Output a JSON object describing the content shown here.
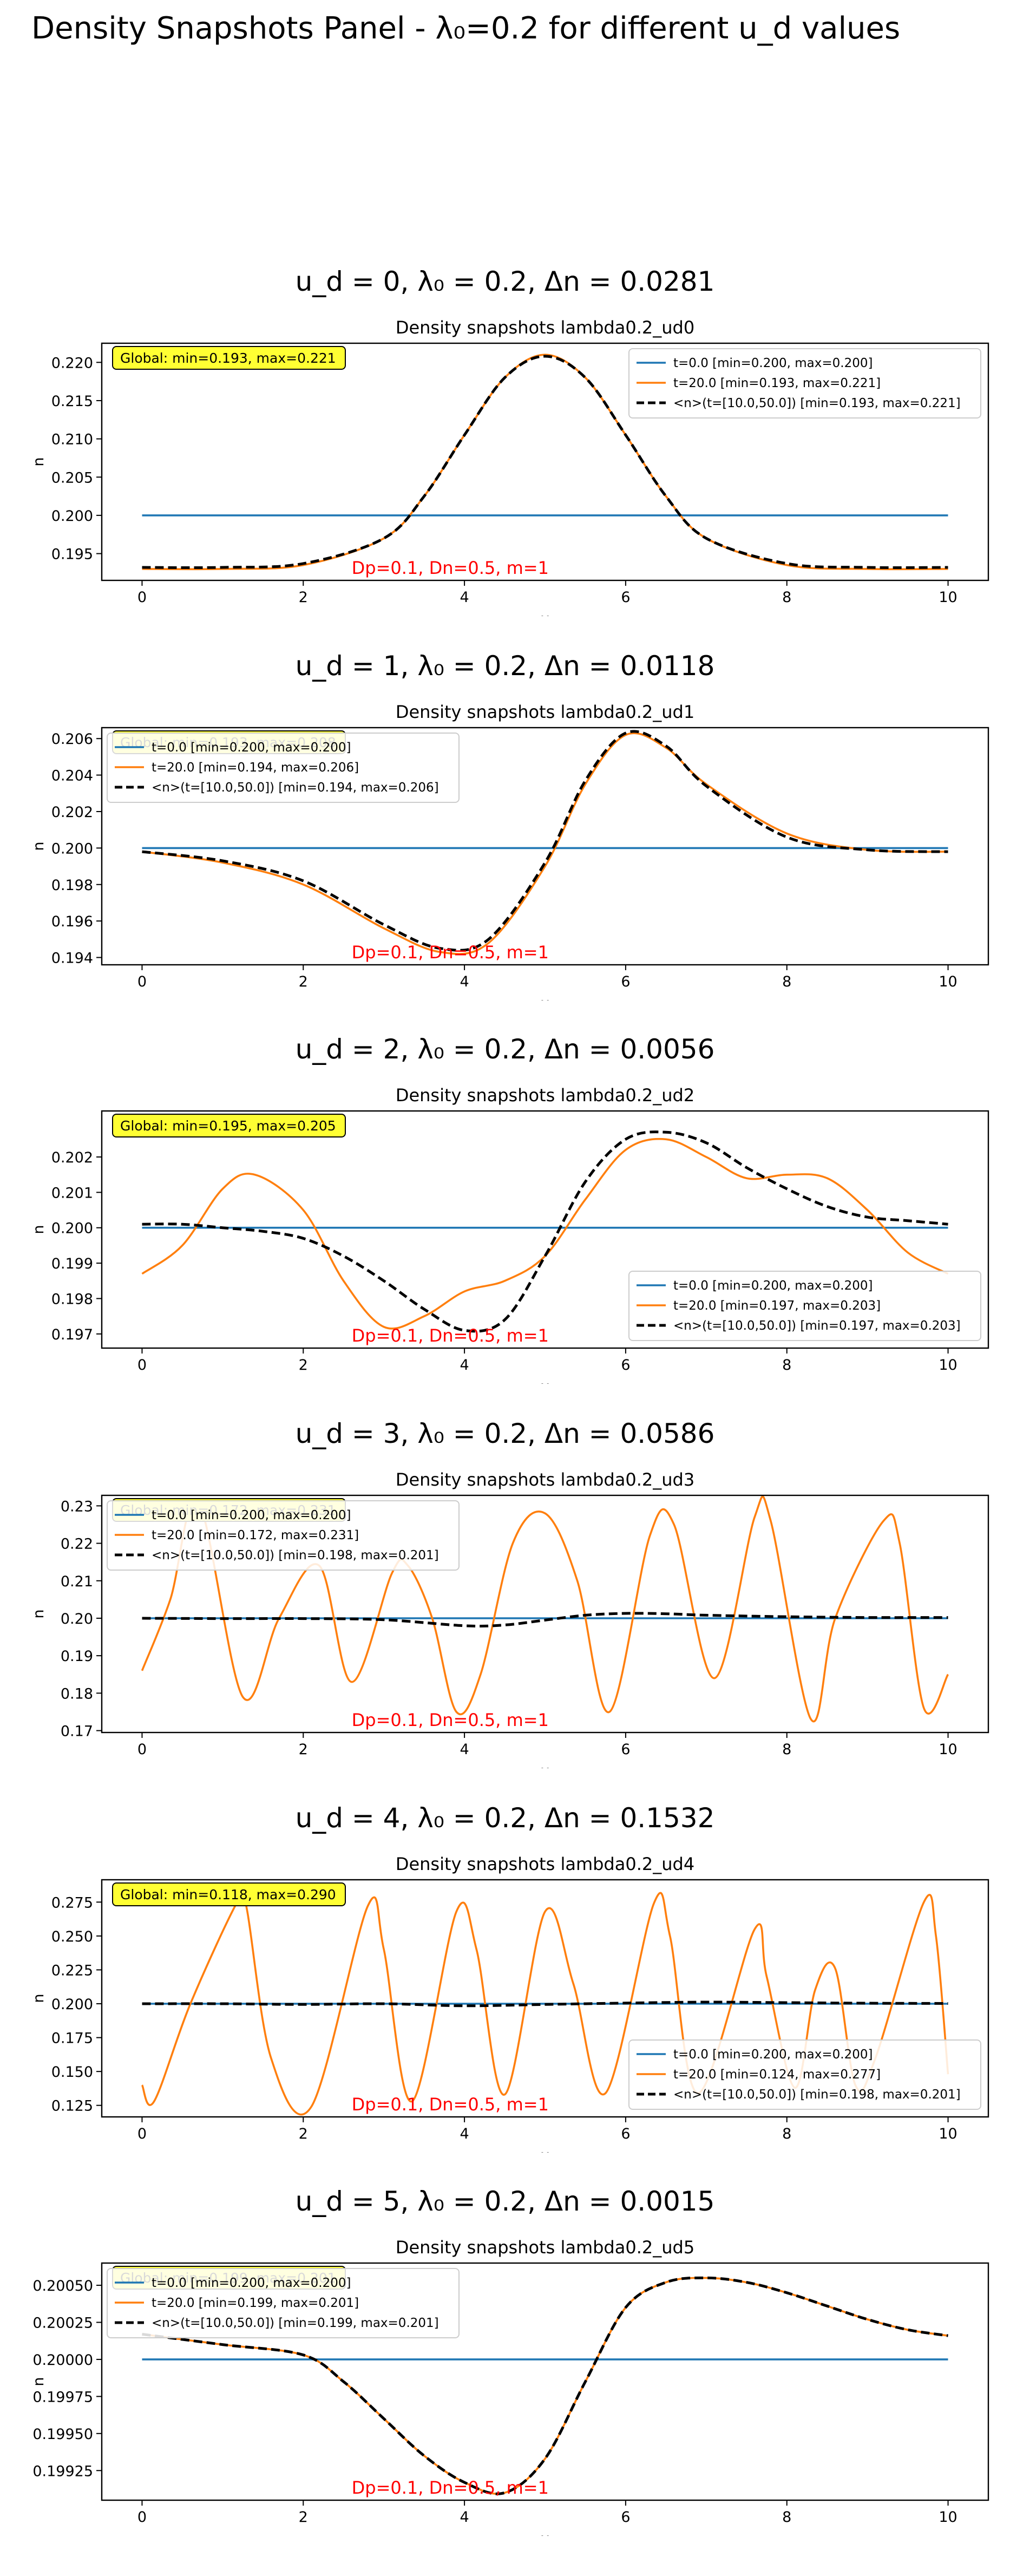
{
  "page_title": "Density Snapshots Panel - λ₀=0.2 for different u_d values",
  "colors": {
    "t0": "#1f77b4",
    "t20": "#ff7f0e",
    "avg": "#000000",
    "global_box": "#ffff33",
    "param_text": "#ff0000"
  },
  "chart_data": [
    {
      "type": "line",
      "heading": "u_d = 0, λ₀ = 0.2, Δn = 0.0281",
      "title": "Density snapshots  lambda0.2_ud0",
      "xlabel": "x",
      "ylabel": "n",
      "xlim": [
        -0.5,
        10.5
      ],
      "ylim": [
        0.1915,
        0.2225
      ],
      "xticks": [
        0,
        2,
        4,
        6,
        8,
        10
      ],
      "yticks": [
        0.195,
        0.2,
        0.205,
        0.21,
        0.215,
        0.22
      ],
      "ytick_labels": [
        "0.195",
        "0.200",
        "0.205",
        "0.210",
        "0.215",
        "0.220"
      ],
      "global_text": "Global: min=0.193, max=0.221",
      "param_text": "Dp=0.1, Dn=0.5, m=1",
      "legend_position": "upper-right",
      "legend_labels": [
        "t=0.0 [min=0.200, max=0.200]",
        "t=20.0 [min=0.193, max=0.221]",
        "<n>(t=[10.0,50.0]) [min=0.193, max=0.221]"
      ],
      "series": [
        {
          "name": "t=0.0",
          "x": [
            0,
            10
          ],
          "y": [
            0.2,
            0.2
          ]
        },
        {
          "name": "t=20.0",
          "x": [
            0,
            1,
            2,
            3,
            3.5,
            4,
            4.5,
            5,
            5.5,
            6,
            6.5,
            7,
            8,
            9,
            10
          ],
          "y": [
            0.193,
            0.193,
            0.1935,
            0.197,
            0.2025,
            0.2105,
            0.218,
            0.221,
            0.218,
            0.2105,
            0.2025,
            0.197,
            0.1935,
            0.193,
            0.193
          ]
        },
        {
          "name": "<n>(t=[10.0,50.0])",
          "x": [
            0,
            1,
            2,
            3,
            3.5,
            4,
            4.5,
            5,
            5.5,
            6,
            6.5,
            7,
            8,
            9,
            10
          ],
          "y": [
            0.1932,
            0.1932,
            0.1937,
            0.197,
            0.2025,
            0.2105,
            0.218,
            0.2208,
            0.218,
            0.2105,
            0.2025,
            0.197,
            0.1937,
            0.1932,
            0.1932
          ]
        }
      ]
    },
    {
      "type": "line",
      "heading": "u_d = 1, λ₀ = 0.2, Δn = 0.0118",
      "title": "Density snapshots  lambda0.2_ud1",
      "xlabel": "x",
      "ylabel": "n",
      "xlim": [
        -0.5,
        10.5
      ],
      "ylim": [
        0.1936,
        0.2066
      ],
      "xticks": [
        0,
        2,
        4,
        6,
        8,
        10
      ],
      "yticks": [
        0.194,
        0.196,
        0.198,
        0.2,
        0.202,
        0.204,
        0.206
      ],
      "ytick_labels": [
        "0.194",
        "0.196",
        "0.198",
        "0.200",
        "0.202",
        "0.204",
        "0.206"
      ],
      "global_text": "Global: min=0.193, max=0.208",
      "param_text": "Dp=0.1, Dn=0.5, m=1",
      "legend_position": "upper-left",
      "legend_labels": [
        "t=0.0 [min=0.200, max=0.200]",
        "t=20.0 [min=0.194, max=0.206]",
        "<n>(t=[10.0,50.0]) [min=0.194, max=0.206]"
      ],
      "series": [
        {
          "name": "t=0.0",
          "x": [
            0,
            10
          ],
          "y": [
            0.2,
            0.2
          ]
        },
        {
          "name": "t=20.0",
          "x": [
            0,
            1,
            2,
            3,
            3.7,
            4.3,
            5,
            5.5,
            6,
            6.5,
            7,
            8,
            9,
            10
          ],
          "y": [
            0.1998,
            0.1992,
            0.198,
            0.1956,
            0.1943,
            0.1948,
            0.199,
            0.2035,
            0.2062,
            0.2055,
            0.2035,
            0.2008,
            0.1999,
            0.1998
          ]
        },
        {
          "name": "<n>(t=[10.0,50.0])",
          "x": [
            0,
            1,
            2,
            3,
            3.7,
            4.3,
            5,
            5.5,
            6,
            6.5,
            7,
            8,
            9,
            10
          ],
          "y": [
            0.1998,
            0.1993,
            0.1982,
            0.1958,
            0.1945,
            0.195,
            0.1992,
            0.2037,
            0.2063,
            0.2056,
            0.2034,
            0.2006,
            0.1999,
            0.1998
          ]
        }
      ]
    },
    {
      "type": "line",
      "heading": "u_d = 2, λ₀ = 0.2, Δn = 0.0056",
      "title": "Density snapshots  lambda0.2_ud2",
      "xlabel": "x",
      "ylabel": "n",
      "xlim": [
        -0.5,
        10.5
      ],
      "ylim": [
        0.1966,
        0.2033
      ],
      "xticks": [
        0,
        2,
        4,
        6,
        8,
        10
      ],
      "yticks": [
        0.197,
        0.198,
        0.199,
        0.2,
        0.201,
        0.202
      ],
      "ytick_labels": [
        "0.197",
        "0.198",
        "0.199",
        "0.200",
        "0.201",
        "0.202"
      ],
      "global_text": "Global: min=0.195, max=0.205",
      "param_text": "Dp=0.1, Dn=0.5, m=1",
      "legend_position": "lower-right",
      "legend_labels": [
        "t=0.0 [min=0.200, max=0.200]",
        "t=20.0 [min=0.197, max=0.203]",
        "<n>(t=[10.0,50.0]) [min=0.197, max=0.203]"
      ],
      "series": [
        {
          "name": "t=0.0",
          "x": [
            0,
            10
          ],
          "y": [
            0.2,
            0.2
          ]
        },
        {
          "name": "t=20.0",
          "x": [
            0,
            0.5,
            1,
            1.4,
            2,
            2.5,
            3,
            3.5,
            4,
            4.5,
            5,
            5.5,
            6,
            6.5,
            7,
            7.5,
            8,
            8.5,
            9,
            9.5,
            10
          ],
          "y": [
            0.1987,
            0.1995,
            0.2011,
            0.2015,
            0.2005,
            0.1985,
            0.1972,
            0.1975,
            0.1982,
            0.1985,
            0.1992,
            0.2008,
            0.2022,
            0.2025,
            0.202,
            0.2014,
            0.2015,
            0.2014,
            0.2005,
            0.1993,
            0.1987
          ]
        },
        {
          "name": "<n>(t=[10.0,50.0])",
          "x": [
            0,
            0.5,
            1,
            1.5,
            2,
            2.5,
            3,
            3.5,
            4,
            4.5,
            5,
            5.5,
            6,
            6.5,
            7,
            7.5,
            8,
            8.5,
            9,
            9.5,
            10
          ],
          "y": [
            0.2001,
            0.2001,
            0.2,
            0.1999,
            0.1997,
            0.1992,
            0.1985,
            0.1977,
            0.1971,
            0.1974,
            0.1992,
            0.2013,
            0.2025,
            0.2027,
            0.2024,
            0.2017,
            0.2011,
            0.2006,
            0.2003,
            0.2002,
            0.2001
          ]
        }
      ]
    },
    {
      "type": "line",
      "heading": "u_d = 3, λ₀ = 0.2, Δn = 0.0586",
      "title": "Density snapshots  lambda0.2_ud3",
      "xlabel": "x",
      "ylabel": "n",
      "xlim": [
        -0.5,
        10.5
      ],
      "ylim": [
        0.1695,
        0.2328
      ],
      "xticks": [
        0,
        2,
        4,
        6,
        8,
        10
      ],
      "yticks": [
        0.17,
        0.18,
        0.19,
        0.2,
        0.21,
        0.22,
        0.23
      ],
      "ytick_labels": [
        "0.17",
        "0.18",
        "0.19",
        "0.20",
        "0.21",
        "0.22",
        "0.23"
      ],
      "global_text": "Global: min=0.172, max=0.231",
      "param_text": "Dp=0.1, Dn=0.5, m=1",
      "legend_position": "upper-left",
      "legend_labels": [
        "t=0.0 [min=0.200, max=0.200]",
        "t=20.0 [min=0.172, max=0.231]",
        "<n>(t=[10.0,50.0]) [min=0.198, max=0.201]"
      ],
      "series": [
        {
          "name": "t=0.0",
          "x": [
            0,
            10
          ],
          "y": [
            0.2,
            0.2
          ]
        },
        {
          "name": "t=20.0",
          "x": [
            0,
            0.35,
            0.7,
            1.25,
            1.7,
            2.2,
            2.6,
            3.1,
            3.3,
            3.6,
            3.9,
            4.2,
            4.6,
            5.0,
            5.4,
            5.8,
            6.3,
            6.6,
            7.1,
            7.6,
            7.8,
            8.3,
            8.6,
            9.2,
            9.4,
            9.7,
            10
          ],
          "y": [
            0.186,
            0.205,
            0.231,
            0.179,
            0.2,
            0.214,
            0.183,
            0.212,
            0.214,
            0.2,
            0.175,
            0.185,
            0.22,
            0.228,
            0.21,
            0.175,
            0.222,
            0.225,
            0.184,
            0.227,
            0.226,
            0.173,
            0.2,
            0.226,
            0.22,
            0.176,
            0.185
          ]
        },
        {
          "name": "<n>(t=[10.0,50.0])",
          "x": [
            0,
            1,
            2,
            3,
            4,
            4.5,
            5,
            5.5,
            6,
            6.5,
            7,
            8,
            9,
            10
          ],
          "y": [
            0.2,
            0.1999,
            0.1999,
            0.1996,
            0.198,
            0.1982,
            0.1995,
            0.2008,
            0.2013,
            0.2012,
            0.2008,
            0.2004,
            0.2002,
            0.2002
          ]
        }
      ]
    },
    {
      "type": "line",
      "heading": "u_d = 4, λ₀ = 0.2, Δn = 0.1532",
      "title": "Density snapshots  lambda0.2_ud4",
      "xlabel": "x",
      "ylabel": "n",
      "xlim": [
        -0.5,
        10.5
      ],
      "ylim": [
        0.1165,
        0.2915
      ],
      "xticks": [
        0,
        2,
        4,
        6,
        8,
        10
      ],
      "yticks": [
        0.125,
        0.15,
        0.175,
        0.2,
        0.225,
        0.25,
        0.275
      ],
      "ytick_labels": [
        "0.125",
        "0.150",
        "0.175",
        "0.200",
        "0.225",
        "0.250",
        "0.275"
      ],
      "global_text": "Global: min=0.118, max=0.290",
      "param_text": "Dp=0.1, Dn=0.5, m=1",
      "legend_position": "lower-right",
      "legend_labels": [
        "t=0.0 [min=0.200, max=0.200]",
        "t=20.0 [min=0.124, max=0.277]",
        "<n>(t=[10.0,50.0]) [min=0.198, max=0.201]"
      ],
      "series": [
        {
          "name": "t=0.0",
          "x": [
            0,
            10
          ],
          "y": [
            0.2,
            0.2
          ]
        },
        {
          "name": "t=20.0",
          "x": [
            0,
            0.15,
            0.6,
            1.2,
            1.3,
            1.6,
            2.1,
            2.8,
            3.0,
            3.35,
            3.9,
            4.15,
            4.5,
            5.0,
            5.35,
            5.75,
            6.35,
            6.55,
            6.9,
            7.6,
            7.75,
            8.1,
            8.35,
            8.6,
            8.85,
            9.1,
            9.7,
            9.85,
            10
          ],
          "y": [
            0.14,
            0.128,
            0.2,
            0.277,
            0.27,
            0.16,
            0.124,
            0.272,
            0.24,
            0.128,
            0.268,
            0.24,
            0.133,
            0.268,
            0.215,
            0.134,
            0.274,
            0.25,
            0.134,
            0.255,
            0.22,
            0.138,
            0.21,
            0.226,
            0.14,
            0.16,
            0.275,
            0.25,
            0.148
          ]
        },
        {
          "name": "<n>(t=[10.0,50.0])",
          "x": [
            0,
            1,
            2,
            3,
            4,
            5,
            6,
            7,
            8,
            9,
            10
          ],
          "y": [
            0.2,
            0.2,
            0.1995,
            0.2,
            0.1985,
            0.1995,
            0.2005,
            0.2012,
            0.2008,
            0.2004,
            0.2002
          ]
        }
      ]
    },
    {
      "type": "line",
      "heading": "u_d = 5, λ₀ = 0.2, Δn = 0.0015",
      "title": "Density snapshots  lambda0.2_ud5",
      "xlabel": "x",
      "ylabel": "n",
      "xlim": [
        -0.5,
        10.5
      ],
      "ylim": [
        0.19905,
        0.20065
      ],
      "xticks": [
        0,
        2,
        4,
        6,
        8,
        10
      ],
      "yticks": [
        0.19925,
        0.1995,
        0.19975,
        0.2,
        0.20025,
        0.2005
      ],
      "ytick_labels": [
        "0.19925",
        "0.19950",
        "0.19975",
        "0.20000",
        "0.20025",
        "0.20050"
      ],
      "global_text": "Global: min=0.199, max=0.201",
      "param_text": "Dp=0.1, Dn=0.5, m=1",
      "legend_position": "upper-left",
      "legend_labels": [
        "t=0.0 [min=0.200, max=0.200]",
        "t=20.0 [min=0.199, max=0.201]",
        "<n>(t=[10.0,50.0]) [min=0.199, max=0.201]"
      ],
      "series": [
        {
          "name": "t=0.0",
          "x": [
            0,
            10
          ],
          "y": [
            0.2,
            0.2
          ]
        },
        {
          "name": "t=20.0",
          "x": [
            0,
            1,
            2,
            2.5,
            3,
            3.5,
            4,
            4.5,
            5,
            5.5,
            6,
            6.5,
            7,
            7.5,
            8,
            8.5,
            9,
            9.5,
            10
          ],
          "y": [
            0.20017,
            0.2001,
            0.20003,
            0.19985,
            0.1996,
            0.19935,
            0.19917,
            0.1991,
            0.19933,
            0.19985,
            0.20035,
            0.20052,
            0.20055,
            0.20052,
            0.20045,
            0.20036,
            0.20027,
            0.2002,
            0.20016
          ]
        },
        {
          "name": "<n>(t=[10.0,50.0])",
          "x": [
            0,
            1,
            2,
            2.5,
            3,
            3.5,
            4,
            4.5,
            5,
            5.5,
            6,
            6.5,
            7,
            7.5,
            8,
            8.5,
            9,
            9.5,
            10
          ],
          "y": [
            0.20017,
            0.2001,
            0.20003,
            0.19985,
            0.1996,
            0.19935,
            0.19917,
            0.1991,
            0.19933,
            0.19985,
            0.20035,
            0.20052,
            0.20055,
            0.20052,
            0.20045,
            0.20036,
            0.20027,
            0.2002,
            0.20016
          ]
        }
      ]
    }
  ]
}
